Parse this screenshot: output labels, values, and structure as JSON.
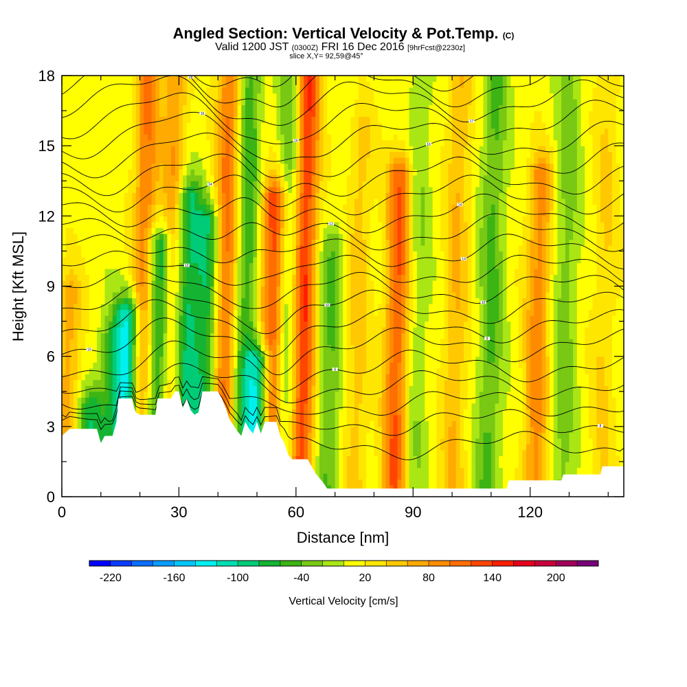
{
  "title": {
    "main": "Angled Section: Vertical Velocity & Pot.Temp.",
    "main_unit": "(C)",
    "line2_a": "Valid 1200 JST",
    "line2_b": "(0300Z)",
    "line2_c": "FRI 16 Dec 2016",
    "line2_d": "[9hrFcst@2230z]",
    "line3": "slice X,Y= 92,59@45°"
  },
  "chart_data": {
    "type": "heatmap",
    "xlabel": "Distance [nm]",
    "ylabel": "Height [Kft MSL]",
    "xlim": [
      0,
      144
    ],
    "ylim": [
      0,
      18
    ],
    "x_ticks": [
      0,
      30,
      60,
      90,
      120
    ],
    "y_ticks": [
      0,
      3,
      6,
      9,
      12,
      15,
      18
    ],
    "colorbar": {
      "title": "Vertical Velocity [cm/s]",
      "min": -240,
      "max": 240,
      "step": 20,
      "tick_labels": [
        "-220",
        "-160",
        "-100",
        "-40",
        "20",
        "80",
        "140",
        "200"
      ],
      "tick_values": [
        -220,
        -160,
        -100,
        -40,
        20,
        80,
        140,
        200
      ],
      "colors": [
        "#0000ff",
        "#0a3cff",
        "#0a6eff",
        "#0a9cff",
        "#00c8ff",
        "#00f0f0",
        "#00e0b4",
        "#00cc78",
        "#14b432",
        "#3cb414",
        "#78c814",
        "#aae614",
        "#ffff00",
        "#ffe600",
        "#ffc800",
        "#ffaa00",
        "#ff8c00",
        "#ff6e00",
        "#ff4600",
        "#ff1e00",
        "#e6001e",
        "#c8003c",
        "#a0005a",
        "#780078"
      ]
    },
    "velocity_columns": [
      {
        "x": 1,
        "vmax": 60,
        "top": 9
      },
      {
        "x": 7,
        "vmax": -80,
        "top": 4
      },
      {
        "x": 12,
        "vmax": -60,
        "top": 7
      },
      {
        "x": 16,
        "vmax": -130,
        "top": 8
      },
      {
        "x": 20,
        "vmax": 90,
        "top": 18
      },
      {
        "x": 24,
        "vmax": -110,
        "top": 11
      },
      {
        "x": 27,
        "vmax": 70,
        "top": 18
      },
      {
        "x": 31,
        "vmax": -95,
        "top": 13
      },
      {
        "x": 36,
        "vmax": -85,
        "top": 12
      },
      {
        "x": 41,
        "vmax": 100,
        "top": 18
      },
      {
        "x": 46,
        "vmax": -70,
        "top": 18
      },
      {
        "x": 50,
        "vmax": -140,
        "top": 6
      },
      {
        "x": 53,
        "vmax": 130,
        "top": 13
      },
      {
        "x": 57,
        "vmax": -60,
        "top": 18
      },
      {
        "x": 61,
        "vmax": 135,
        "top": 18
      },
      {
        "x": 68,
        "vmax": -50,
        "top": 11
      },
      {
        "x": 75,
        "vmax": 40,
        "top": 16
      },
      {
        "x": 85,
        "vmax": 110,
        "top": 14
      },
      {
        "x": 90,
        "vmax": -30,
        "top": 18
      },
      {
        "x": 100,
        "vmax": 50,
        "top": 18
      },
      {
        "x": 109,
        "vmax": -55,
        "top": 18
      },
      {
        "x": 121,
        "vmax": 80,
        "top": 14
      },
      {
        "x": 128,
        "vmax": -40,
        "top": 18
      },
      {
        "x": 138,
        "vmax": 30,
        "top": 18
      }
    ],
    "terrain": [
      [
        0,
        2.6
      ],
      [
        2,
        2.9
      ],
      [
        9,
        2.9
      ],
      [
        10,
        2.3
      ],
      [
        11,
        2.6
      ],
      [
        13,
        2.6
      ],
      [
        14,
        3.2
      ],
      [
        14.5,
        4.2
      ],
      [
        18,
        4.2
      ],
      [
        18.5,
        3.8
      ],
      [
        19,
        3.6
      ],
      [
        20,
        3.5
      ],
      [
        24,
        3.5
      ],
      [
        24.5,
        4.2
      ],
      [
        28,
        4.2
      ],
      [
        29,
        4.5
      ],
      [
        30,
        4.5
      ],
      [
        31,
        3.8
      ],
      [
        32,
        4.2
      ],
      [
        33,
        3.7
      ],
      [
        34,
        3.5
      ],
      [
        35,
        3.6
      ],
      [
        36,
        4.5
      ],
      [
        40,
        4.5
      ],
      [
        41,
        4.2
      ],
      [
        42,
        3.8
      ],
      [
        43,
        3.3
      ],
      [
        45,
        2.8
      ],
      [
        46,
        2.6
      ],
      [
        47,
        3.2
      ],
      [
        48,
        2.9
      ],
      [
        49,
        2.7
      ],
      [
        50,
        3.2
      ],
      [
        51,
        2.7
      ],
      [
        52,
        3.2
      ],
      [
        55,
        3.2
      ],
      [
        56,
        2.6
      ],
      [
        57,
        2.3
      ],
      [
        58,
        1.8
      ],
      [
        59,
        1.6
      ],
      [
        63,
        1.6
      ],
      [
        64,
        1.3
      ],
      [
        65,
        1.0
      ],
      [
        66,
        0.8
      ],
      [
        67,
        0.6
      ],
      [
        68,
        0.35
      ],
      [
        114,
        0.35
      ],
      [
        114.5,
        0.7
      ],
      [
        128,
        0.7
      ],
      [
        128.5,
        0.95
      ],
      [
        138,
        0.95
      ],
      [
        138.5,
        1.3
      ],
      [
        144,
        1.3
      ]
    ],
    "theta_contours": [
      {
        "base": 2.2,
        "label": "",
        "label_x": 0
      },
      {
        "base": 3.2,
        "label": "8",
        "label_x": 138
      },
      {
        "base": 4.0,
        "label": "",
        "label_x": 0
      },
      {
        "base": 4.8,
        "label": "",
        "label_x": 0
      },
      {
        "base": 5.6,
        "label": "8",
        "label_x": 70
      },
      {
        "base": 6.5,
        "label": "10",
        "label_x": 7
      },
      {
        "base": 7.3,
        "label": "8",
        "label_x": 109
      },
      {
        "base": 8.1,
        "label": "10",
        "label_x": 68
      },
      {
        "base": 8.9,
        "label": "10",
        "label_x": 108
      },
      {
        "base": 9.7,
        "label": "12",
        "label_x": 32
      },
      {
        "base": 10.5,
        "label": "14",
        "label_x": 103
      },
      {
        "base": 11.3,
        "label": "12",
        "label_x": 69
      },
      {
        "base": 12.1,
        "label": "14",
        "label_x": 102
      },
      {
        "base": 12.9,
        "label": "14",
        "label_x": 38
      },
      {
        "base": 13.7,
        "label": "",
        "label_x": 0
      },
      {
        "base": 14.5,
        "label": "16",
        "label_x": 94
      },
      {
        "base": 15.3,
        "label": "16",
        "label_x": 36
      },
      {
        "base": 16.1,
        "label": "16",
        "label_x": 60
      },
      {
        "base": 16.9,
        "label": "17",
        "label_x": 105
      },
      {
        "base": 17.6,
        "label": "18",
        "label_x": 33
      },
      {
        "base": 18.3,
        "label": "18",
        "label_x": 61
      }
    ]
  }
}
